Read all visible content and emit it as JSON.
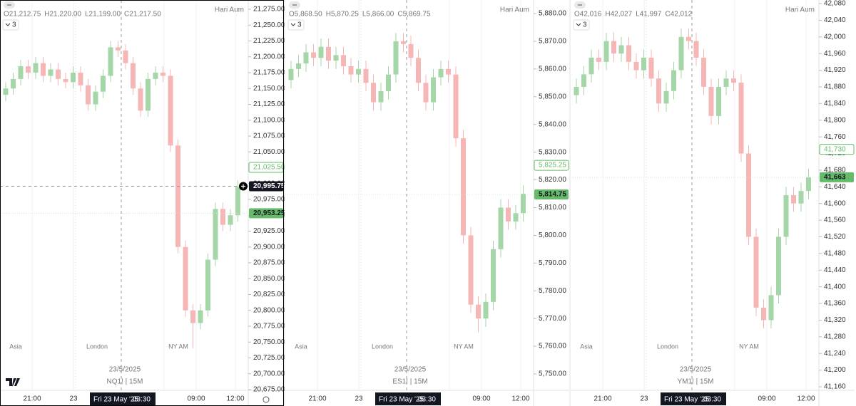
{
  "panels": [
    {
      "type": "candlestick",
      "author": "Hari Aum",
      "ohlc_header": [
        "O21,212.75",
        "H21,220.00",
        "L21,199.00",
        "C21,217.50"
      ],
      "indicators": "3",
      "date": "23/5/2025",
      "symbol": "NQ1! | 15M",
      "sessions": [
        "Asia",
        "London",
        "NY AM"
      ],
      "time_labels": [
        "21:00",
        "23",
        "09:00",
        "12:00"
      ],
      "crosshair_time": [
        "Fri 23 May '25",
        "03:30"
      ],
      "up_color": "#a5d6a7",
      "down_color": "#f7b6b6",
      "selected": true,
      "ylim": [
        20675,
        21275
      ],
      "yticks": [
        {
          "value": 20675,
          "label": "20,675.00"
        },
        {
          "value": 20700,
          "label": "20,700.00"
        },
        {
          "value": 20725,
          "label": "20,725.00"
        },
        {
          "value": 20750,
          "label": "20,750.00"
        },
        {
          "value": 20775,
          "label": "20,775.00"
        },
        {
          "value": 20800,
          "label": "20,800.00"
        },
        {
          "value": 20825,
          "label": "20,825.00"
        },
        {
          "value": 20850,
          "label": "20,850.00"
        },
        {
          "value": 20875,
          "label": "20,875.00"
        },
        {
          "value": 20900,
          "label": "20,900.00"
        },
        {
          "value": 20925,
          "label": "20,925.00"
        },
        {
          "value": 20950,
          "label": "20,950.00"
        },
        {
          "value": 20975,
          "label": "20,975.00"
        },
        {
          "value": 21000,
          "label": "21,000.00"
        },
        {
          "value": 21025,
          "label": "21,025.00"
        },
        {
          "value": 21050,
          "label": "21,050.00"
        },
        {
          "value": 21075,
          "label": "21,075.00"
        },
        {
          "value": 21100,
          "label": "21,100.00"
        },
        {
          "value": 21125,
          "label": "21,125.00"
        },
        {
          "value": 21150,
          "label": "21,150.00"
        },
        {
          "value": 21175,
          "label": "21,175.00"
        },
        {
          "value": 21200,
          "label": "21,200.00"
        },
        {
          "value": 21225,
          "label": "21,225.00"
        },
        {
          "value": 21250,
          "label": "21,250.00"
        },
        {
          "value": 21275,
          "label": "21,275.00"
        }
      ],
      "price_labels": [
        {
          "value": 21025.5,
          "label": "21,025.50",
          "style": "outline"
        },
        {
          "value": 20995.75,
          "label": "20,995.75",
          "style": "crosshair"
        },
        {
          "value": 20953.25,
          "label": "20,953.25",
          "style": "filled"
        }
      ],
      "open": [
        21140,
        21150,
        21165,
        21185,
        21175,
        21190,
        21170,
        21180,
        21165,
        21160,
        21175,
        21155,
        21125,
        21145,
        21170,
        21215,
        21210,
        21190,
        21150,
        21115,
        21165,
        21175,
        21170,
        21060,
        20900,
        20800,
        20780,
        20800,
        20880,
        20960,
        20935,
        20950
      ],
      "high": [
        21160,
        21175,
        21195,
        21195,
        21200,
        21200,
        21190,
        21190,
        21175,
        21185,
        21185,
        21165,
        21155,
        21180,
        21225,
        21225,
        21220,
        21200,
        21160,
        21175,
        21185,
        21185,
        21180,
        21070,
        20910,
        20810,
        20810,
        20890,
        20970,
        20970,
        20960,
        21005
      ],
      "low": [
        21130,
        21140,
        21155,
        21165,
        21165,
        21160,
        21160,
        21155,
        21150,
        21150,
        21145,
        21115,
        21115,
        21135,
        21160,
        21200,
        21180,
        21140,
        21105,
        21105,
        21155,
        21160,
        21050,
        20890,
        20790,
        20740,
        20770,
        20790,
        20870,
        20925,
        20925,
        20940
      ],
      "close": [
        21150,
        21165,
        21185,
        21175,
        21190,
        21170,
        21180,
        21165,
        21160,
        21175,
        21155,
        21125,
        21145,
        21170,
        21215,
        21210,
        21190,
        21150,
        21115,
        21165,
        21175,
        21170,
        21060,
        20900,
        20800,
        20780,
        20800,
        20880,
        20960,
        20935,
        20950,
        20995
      ]
    },
    {
      "type": "candlestick",
      "author": "Hari Aum",
      "ohlc_header": [
        "O5,868.50",
        "H5,870.25",
        "L5,866.00",
        "C5,869.75"
      ],
      "indicators": "3",
      "date": "23/5/2025",
      "symbol": "ES1! | 15M",
      "sessions": [
        "Asia",
        "London",
        "NY AM"
      ],
      "time_labels": [
        "21:00",
        "23",
        "09:00",
        "12:00"
      ],
      "crosshair_time": [
        "Fri 23 May '25",
        "03:30"
      ],
      "up_color": "#a5d6a7",
      "down_color": "#f7b6b6",
      "selected": false,
      "ylim": [
        5750,
        5880
      ],
      "yticks": [
        {
          "value": 5750,
          "label": "5,750.00"
        },
        {
          "value": 5760,
          "label": "5,760.00"
        },
        {
          "value": 5770,
          "label": "5,770.00"
        },
        {
          "value": 5780,
          "label": "5,780.00"
        },
        {
          "value": 5790,
          "label": "5,790.00"
        },
        {
          "value": 5800,
          "label": "5,800.00"
        },
        {
          "value": 5810,
          "label": "5,810.00"
        },
        {
          "value": 5820,
          "label": "5,820.00"
        },
        {
          "value": 5830,
          "label": "5,830.00"
        },
        {
          "value": 5840,
          "label": "5,840.00"
        },
        {
          "value": 5850,
          "label": "5,850.00"
        },
        {
          "value": 5860,
          "label": "5,860.00"
        },
        {
          "value": 5870,
          "label": "5,870.00"
        },
        {
          "value": 5880,
          "label": "5,880.00"
        }
      ],
      "price_labels": [
        {
          "value": 5825.25,
          "label": "5,825.25",
          "style": "outline"
        },
        {
          "value": 5814.75,
          "label": "5,814.75",
          "style": "filled"
        }
      ],
      "open": [
        5856,
        5860,
        5862,
        5866,
        5864,
        5868,
        5863,
        5865,
        5861,
        5858,
        5860,
        5855,
        5848,
        5852,
        5858,
        5870,
        5869,
        5864,
        5855,
        5848,
        5857,
        5860,
        5858,
        5835,
        5800,
        5775,
        5770,
        5776,
        5795,
        5810,
        5805,
        5808
      ],
      "high": [
        5863,
        5865,
        5869,
        5869,
        5871,
        5871,
        5868,
        5868,
        5864,
        5863,
        5863,
        5858,
        5855,
        5861,
        5873,
        5873,
        5872,
        5867,
        5858,
        5860,
        5863,
        5863,
        5861,
        5838,
        5803,
        5778,
        5779,
        5798,
        5813,
        5813,
        5811,
        5818
      ],
      "low": [
        5853,
        5857,
        5859,
        5861,
        5861,
        5860,
        5860,
        5858,
        5855,
        5855,
        5852,
        5845,
        5845,
        5849,
        5855,
        5866,
        5861,
        5852,
        5845,
        5845,
        5854,
        5855,
        5832,
        5797,
        5772,
        5765,
        5767,
        5773,
        5792,
        5802,
        5802,
        5805
      ],
      "close": [
        5860,
        5862,
        5866,
        5864,
        5868,
        5863,
        5865,
        5861,
        5858,
        5860,
        5855,
        5848,
        5852,
        5858,
        5870,
        5869,
        5864,
        5855,
        5848,
        5857,
        5860,
        5858,
        5835,
        5800,
        5775,
        5770,
        5776,
        5795,
        5810,
        5805,
        5808,
        5815
      ]
    },
    {
      "type": "candlestick",
      "author": "Hari Aum",
      "ohlc_header": [
        "O42,016",
        "H42,027",
        "L41,997",
        "C42,012"
      ],
      "indicators": "3",
      "date": "23/5/2025",
      "symbol": "YM1! | 15M",
      "sessions": [
        "Asia",
        "London",
        "NY AM"
      ],
      "time_labels": [
        "21:00",
        "23",
        "09:00",
        "12:00"
      ],
      "crosshair_time": [
        "Fri 23 May '25",
        "03:30"
      ],
      "up_color": "#a5d6a7",
      "down_color": "#f7b6b6",
      "selected": false,
      "ylim": [
        41160,
        42080
      ],
      "yticks": [
        {
          "value": 41160,
          "label": "41,160"
        },
        {
          "value": 41200,
          "label": "41,200"
        },
        {
          "value": 41240,
          "label": "41,240"
        },
        {
          "value": 41280,
          "label": "41,280"
        },
        {
          "value": 41320,
          "label": "41,320"
        },
        {
          "value": 41360,
          "label": "41,360"
        },
        {
          "value": 41400,
          "label": "41,400"
        },
        {
          "value": 41440,
          "label": "41,440"
        },
        {
          "value": 41480,
          "label": "41,480"
        },
        {
          "value": 41520,
          "label": "41,520"
        },
        {
          "value": 41560,
          "label": "41,560"
        },
        {
          "value": 41600,
          "label": "41,600"
        },
        {
          "value": 41640,
          "label": "41,640"
        },
        {
          "value": 41680,
          "label": "41,680"
        },
        {
          "value": 41720,
          "label": "41,720"
        },
        {
          "value": 41760,
          "label": "41,760"
        },
        {
          "value": 41800,
          "label": "41,800"
        },
        {
          "value": 41840,
          "label": "41,840"
        },
        {
          "value": 41880,
          "label": "41,880"
        },
        {
          "value": 41920,
          "label": "41,920"
        },
        {
          "value": 41960,
          "label": "41,960"
        },
        {
          "value": 42000,
          "label": "42,000"
        },
        {
          "value": 42040,
          "label": "42,040"
        },
        {
          "value": 42080,
          "label": "42,080"
        }
      ],
      "price_labels": [
        {
          "value": 41730,
          "label": "41,730",
          "style": "outline"
        },
        {
          "value": 41663,
          "label": "41,663",
          "style": "filled"
        }
      ],
      "open": [
        41860,
        41880,
        41910,
        41950,
        41940,
        41990,
        41960,
        41980,
        41940,
        41920,
        41950,
        41900,
        41840,
        41870,
        41920,
        42000,
        41990,
        41950,
        41880,
        41810,
        41880,
        41900,
        41890,
        41720,
        41520,
        41350,
        41320,
        41380,
        41520,
        41620,
        41600,
        41630
      ],
      "high": [
        41900,
        41930,
        41970,
        41970,
        42010,
        42010,
        42000,
        42000,
        41960,
        41970,
        41970,
        41920,
        41890,
        41940,
        42020,
        42020,
        42010,
        41970,
        41900,
        41900,
        41920,
        41920,
        41910,
        41740,
        41540,
        41370,
        41400,
        41540,
        41640,
        41640,
        41650,
        41683
      ],
      "low": [
        41840,
        41860,
        41890,
        41920,
        41920,
        41940,
        41940,
        41920,
        41900,
        41900,
        41880,
        41820,
        41820,
        41850,
        41900,
        41970,
        41930,
        41860,
        41790,
        41790,
        41860,
        41870,
        41700,
        41500,
        41330,
        41300,
        41300,
        41360,
        41500,
        41580,
        41580,
        41610
      ],
      "close": [
        41880,
        41910,
        41950,
        41940,
        41990,
        41960,
        41980,
        41940,
        41920,
        41950,
        41900,
        41840,
        41870,
        41920,
        42000,
        41990,
        41950,
        41880,
        41810,
        41880,
        41900,
        41890,
        41720,
        41520,
        41350,
        41320,
        41380,
        41520,
        41620,
        41600,
        41630,
        41663
      ]
    }
  ]
}
